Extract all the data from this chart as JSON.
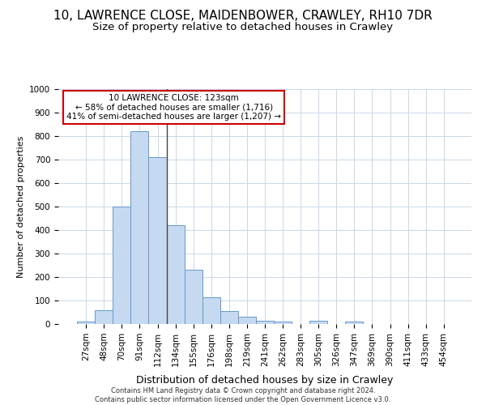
{
  "title_line1": "10, LAWRENCE CLOSE, MAIDENBOWER, CRAWLEY, RH10 7DR",
  "title_line2": "Size of property relative to detached houses in Crawley",
  "xlabel": "Distribution of detached houses by size in Crawley",
  "ylabel": "Number of detached properties",
  "bar_values": [
    10,
    58,
    500,
    820,
    710,
    420,
    230,
    115,
    55,
    32,
    15,
    10,
    0,
    15,
    0,
    10,
    0,
    0,
    0,
    0,
    0
  ],
  "categories": [
    "27sqm",
    "48sqm",
    "70sqm",
    "91sqm",
    "112sqm",
    "134sqm",
    "155sqm",
    "176sqm",
    "198sqm",
    "219sqm",
    "241sqm",
    "262sqm",
    "283sqm",
    "305sqm",
    "326sqm",
    "347sqm",
    "369sqm",
    "390sqm",
    "411sqm",
    "433sqm",
    "454sqm"
  ],
  "bar_color": "#c5d9f0",
  "bar_edge_color": "#6699cc",
  "annotation_box_text": "10 LAWRENCE CLOSE: 123sqm\n← 58% of detached houses are smaller (1,716)\n41% of semi-detached houses are larger (1,207) →",
  "annotation_box_color": "#ffffff",
  "annotation_box_edge_color": "#cc0000",
  "vline_x_index": 4.5,
  "ylim": [
    0,
    1000
  ],
  "yticks": [
    0,
    100,
    200,
    300,
    400,
    500,
    600,
    700,
    800,
    900,
    1000
  ],
  "footnote": "Contains HM Land Registry data © Crown copyright and database right 2024.\nContains public sector information licensed under the Open Government Licence v3.0.",
  "background_color": "#ffffff",
  "grid_color": "#c8d8e8",
  "title_fontsize": 11,
  "subtitle_fontsize": 9.5,
  "ylabel_fontsize": 8,
  "xlabel_fontsize": 9,
  "tick_fontsize": 7.5,
  "annot_fontsize": 7.5,
  "footnote_fontsize": 6
}
